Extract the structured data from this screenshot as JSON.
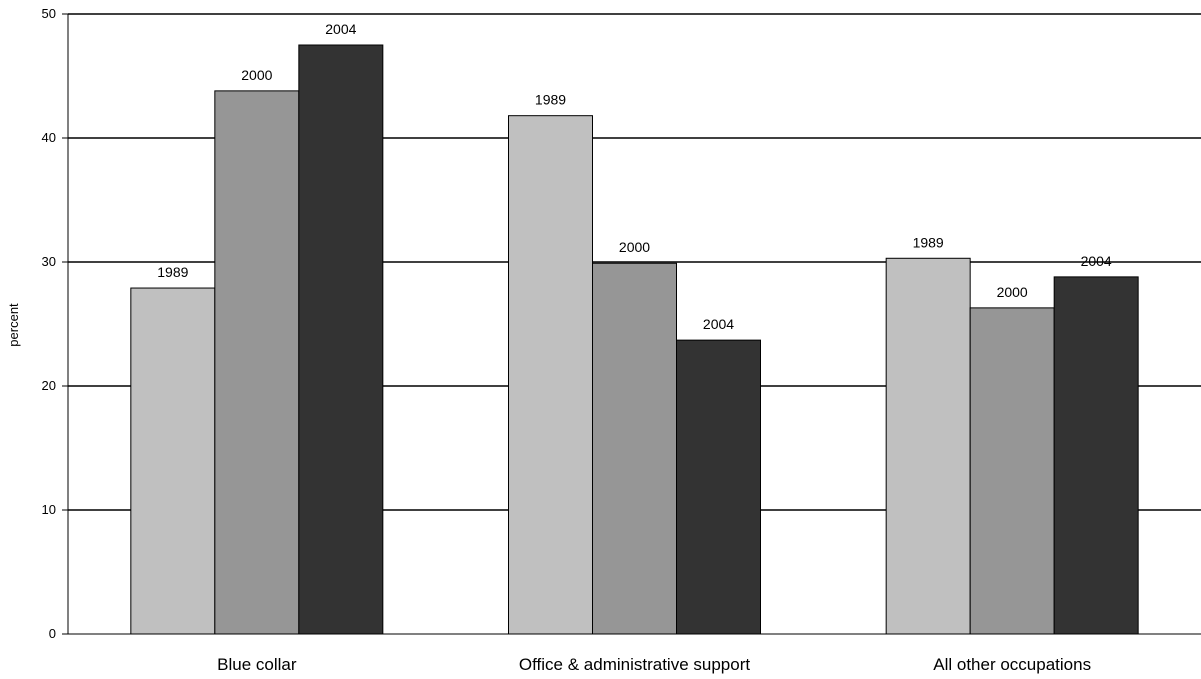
{
  "chart_data": {
    "type": "bar",
    "title": "",
    "xlabel": "",
    "ylabel": "percent",
    "ylim": [
      0,
      50
    ],
    "yticks": [
      0,
      10,
      20,
      30,
      40,
      50
    ],
    "grid": true,
    "legend": "none",
    "categories": [
      "Blue collar",
      "Office & administrative support",
      "All other occupations"
    ],
    "series": [
      {
        "color": "#c0c0c0",
        "values": [
          27.9,
          41.8,
          30.3
        ],
        "labels": [
          "1989",
          "1989",
          "1989"
        ]
      },
      {
        "color": "#969696",
        "values": [
          43.8,
          29.9,
          26.3
        ],
        "labels": [
          "2000",
          "2000",
          "2000"
        ]
      },
      {
        "color": "#333333",
        "values": [
          47.5,
          23.7,
          28.8
        ],
        "labels": [
          "2004",
          "2004",
          "2004"
        ]
      }
    ]
  }
}
